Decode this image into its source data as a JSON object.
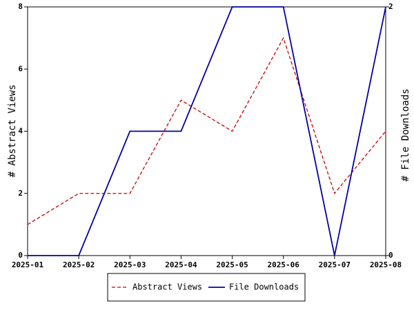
{
  "chart_data": {
    "type": "line",
    "categories": [
      "2025-01",
      "2025-02",
      "2025-03",
      "2025-04",
      "2025-05",
      "2025-06",
      "2025-07",
      "2025-08"
    ],
    "y_label": "# Abstract Views",
    "y2_label": "# File Downloads",
    "ylim": [
      0,
      8
    ],
    "yticks": [
      0,
      2,
      4,
      6,
      8
    ],
    "y2lim": [
      0,
      2
    ],
    "y2ticks": [
      0,
      2
    ],
    "series": [
      {
        "name": "Abstract Views",
        "color": "#cc0000",
        "dashed": true,
        "values": [
          1,
          2,
          2,
          5,
          4,
          7,
          2,
          4
        ]
      },
      {
        "name": "File Downloads",
        "color": "#0000a0",
        "dashed": false,
        "axis": "y2",
        "values": [
          0,
          0,
          1,
          1,
          2,
          2,
          0,
          2
        ]
      }
    ]
  }
}
